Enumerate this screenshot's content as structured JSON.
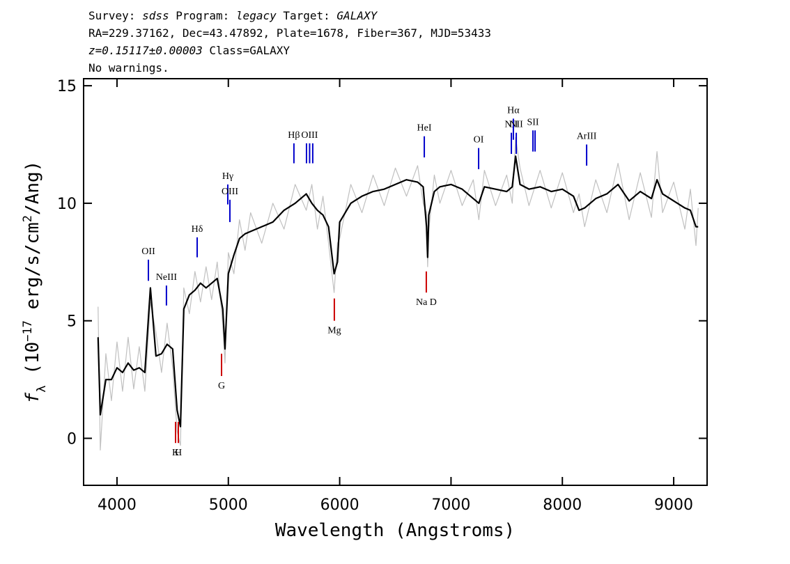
{
  "chart_data": {
    "type": "line",
    "header": [
      [
        {
          "text": "Survey: ",
          "italic": false
        },
        {
          "text": "sdss",
          "italic": true
        },
        {
          "text": " Program: ",
          "italic": false
        },
        {
          "text": "legacy",
          "italic": true
        },
        {
          "text": " Target: ",
          "italic": false
        },
        {
          "text": "GALAXY",
          "italic": true
        }
      ],
      [
        {
          "text": "RA=229.37162, Dec=43.47892, Plate=1678, Fiber=367, MJD=53433",
          "italic": false
        }
      ],
      [
        {
          "text": "z=0.15117±0.00003",
          "italic": true
        },
        {
          "text": " Class=GALAXY",
          "italic": false
        }
      ],
      [
        {
          "text": "No warnings.",
          "italic": false
        }
      ]
    ],
    "xlabel": "Wavelength (Angstroms)",
    "ylabel": [
      {
        "text": "f",
        "shift": "none",
        "italic": true
      },
      {
        "text": "λ",
        "shift": "sub",
        "italic": false
      },
      {
        "text": " (10",
        "shift": "none",
        "italic": false
      },
      {
        "text": "−17",
        "shift": "sup",
        "italic": false
      },
      {
        "text": " erg/s/cm",
        "shift": "none",
        "italic": false
      },
      {
        "text": "2",
        "shift": "sup",
        "italic": false
      },
      {
        "text": "/Ang)",
        "shift": "none",
        "italic": false
      }
    ],
    "xlim": [
      3700,
      9300
    ],
    "ylim": [
      -2,
      15.3
    ],
    "xticks": [
      4000,
      5000,
      6000,
      7000,
      8000,
      9000
    ],
    "yticks": [
      0,
      5,
      10,
      15
    ],
    "grid": false,
    "x": [
      3830,
      3850,
      3900,
      3950,
      4000,
      4050,
      4100,
      4150,
      4200,
      4250,
      4300,
      4350,
      4400,
      4450,
      4500,
      4540,
      4570,
      4600,
      4650,
      4700,
      4750,
      4800,
      4850,
      4900,
      4950,
      4970,
      5000,
      5050,
      5100,
      5150,
      5200,
      5300,
      5400,
      5500,
      5600,
      5700,
      5750,
      5800,
      5850,
      5900,
      5950,
      5980,
      6000,
      6100,
      6200,
      6300,
      6400,
      6500,
      6600,
      6700,
      6750,
      6780,
      6790,
      6800,
      6850,
      6900,
      7000,
      7100,
      7200,
      7250,
      7300,
      7400,
      7500,
      7550,
      7580,
      7620,
      7700,
      7800,
      7900,
      8000,
      8100,
      8150,
      8200,
      8300,
      8400,
      8500,
      8600,
      8700,
      8800,
      8850,
      8900,
      9000,
      9100,
      9150,
      9200,
      9220
    ],
    "series": [
      {
        "color": "#c0c0c0",
        "width": 1.2,
        "values": [
          5.6,
          -0.5,
          3.6,
          1.6,
          4.1,
          2.0,
          4.3,
          2.1,
          3.9,
          2.0,
          5.8,
          4.5,
          2.8,
          4.9,
          3.0,
          0.3,
          -0.3,
          6.4,
          5.3,
          7.1,
          5.8,
          7.3,
          5.9,
          7.5,
          4.8,
          3.2,
          7.9,
          7.0,
          9.3,
          8.0,
          9.6,
          8.3,
          10.0,
          8.9,
          10.8,
          9.7,
          10.8,
          8.9,
          10.3,
          8.3,
          6.2,
          8.3,
          8.5,
          10.8,
          9.6,
          11.2,
          9.9,
          11.5,
          10.3,
          11.6,
          10.0,
          9.6,
          7.3,
          8.8,
          11.2,
          10.0,
          11.4,
          9.9,
          11.0,
          9.3,
          11.4,
          9.9,
          11.2,
          10.0,
          12.8,
          11.5,
          9.9,
          11.4,
          9.8,
          11.3,
          9.6,
          10.4,
          9.0,
          11.0,
          9.6,
          11.7,
          9.3,
          11.3,
          9.4,
          12.2,
          9.6,
          10.9,
          8.9,
          10.6,
          8.2,
          9.8
        ]
      },
      {
        "color": "#000000",
        "width": 2.2,
        "values": [
          4.3,
          1.0,
          2.5,
          2.5,
          3.0,
          2.8,
          3.2,
          2.9,
          3.0,
          2.8,
          6.4,
          3.5,
          3.6,
          4.0,
          3.8,
          1.2,
          0.5,
          5.5,
          6.1,
          6.3,
          6.6,
          6.4,
          6.6,
          6.8,
          5.5,
          3.8,
          7.0,
          7.8,
          8.5,
          8.7,
          8.8,
          9.0,
          9.2,
          9.7,
          10.0,
          10.4,
          10.0,
          9.7,
          9.5,
          9.0,
          7.0,
          7.5,
          9.2,
          10.0,
          10.3,
          10.5,
          10.6,
          10.8,
          11.0,
          10.9,
          10.7,
          9.0,
          7.7,
          9.5,
          10.5,
          10.7,
          10.8,
          10.6,
          10.2,
          10.0,
          10.7,
          10.6,
          10.5,
          10.7,
          12.0,
          10.8,
          10.6,
          10.7,
          10.5,
          10.6,
          10.3,
          9.7,
          9.8,
          10.2,
          10.4,
          10.8,
          10.1,
          10.5,
          10.2,
          11.0,
          10.4,
          10.1,
          9.8,
          9.7,
          9.0,
          9.0
        ]
      }
    ],
    "lines": [
      {
        "label": "OII",
        "wavelength": 4282,
        "y": [
          6.7,
          7.6
        ],
        "color": "#0000cc"
      },
      {
        "label": "NeIII",
        "wavelength": 4444,
        "y": [
          5.65,
          6.5
        ],
        "color": "#0000cc"
      },
      {
        "label": "Hδ",
        "wavelength": 4720,
        "y": [
          7.7,
          8.55
        ],
        "color": "#0000cc"
      },
      {
        "label": "Hγ",
        "wavelength": 4995,
        "y": [
          9.95,
          10.8
        ],
        "color": "#0000cc"
      },
      {
        "label": "OIII",
        "wavelength": 5014,
        "y": [
          9.2,
          10.15
        ],
        "color": "#0000cc"
      },
      {
        "label": "Hβ",
        "wavelength": 5589,
        "y": [
          11.7,
          12.55
        ],
        "color": "#0000cc"
      },
      {
        "label": "OIII",
        "wavelength": 5730,
        "y": [
          11.7,
          12.55
        ],
        "color": "#0000cc"
      },
      {
        "label": null,
        "wavelength": 5702,
        "y": [
          11.7,
          12.55
        ],
        "color": "#0000cc"
      },
      {
        "label": null,
        "wavelength": 5758,
        "y": [
          11.7,
          12.55
        ],
        "color": "#0000cc"
      },
      {
        "label": "HeI",
        "wavelength": 6760,
        "y": [
          11.95,
          12.85
        ],
        "color": "#0000cc"
      },
      {
        "label": "OI",
        "wavelength": 7248,
        "y": [
          11.45,
          12.35
        ],
        "color": "#0000cc"
      },
      {
        "label": "NII",
        "wavelength": 7542,
        "y": [
          12.1,
          13.0
        ],
        "color": "#0000cc"
      },
      {
        "label": "Hα",
        "wavelength": 7560,
        "y": [
          12.7,
          13.6
        ],
        "color": "#0000cc"
      },
      {
        "label": "NII",
        "wavelength": 7586,
        "y": [
          12.1,
          13.0
        ],
        "color": "#0000cc"
      },
      {
        "label": "SII",
        "wavelength": 7736,
        "y": [
          12.2,
          13.1
        ],
        "color": "#0000cc"
      },
      {
        "label": null,
        "wavelength": 7755,
        "y": [
          12.2,
          13.1
        ],
        "color": "#0000cc"
      },
      {
        "label": "ArIII",
        "wavelength": 8218,
        "y": [
          11.6,
          12.5
        ],
        "color": "#0000cc"
      },
      {
        "label": "K",
        "wavelength": 4526,
        "y": [
          -0.2,
          0.7
        ],
        "color": "#cc0000"
      },
      {
        "label": "H",
        "wavelength": 4551,
        "y": [
          -0.2,
          0.7
        ],
        "color": "#cc0000"
      },
      {
        "label": "G",
        "wavelength": 4939,
        "y": [
          2.65,
          3.6
        ],
        "color": "#cc0000"
      },
      {
        "label": "Mg",
        "wavelength": 5952,
        "y": [
          5.0,
          5.95
        ],
        "color": "#cc0000"
      },
      {
        "label": "Na D",
        "wavelength": 6778,
        "y": [
          6.2,
          7.1
        ],
        "color": "#cc0000"
      }
    ]
  }
}
